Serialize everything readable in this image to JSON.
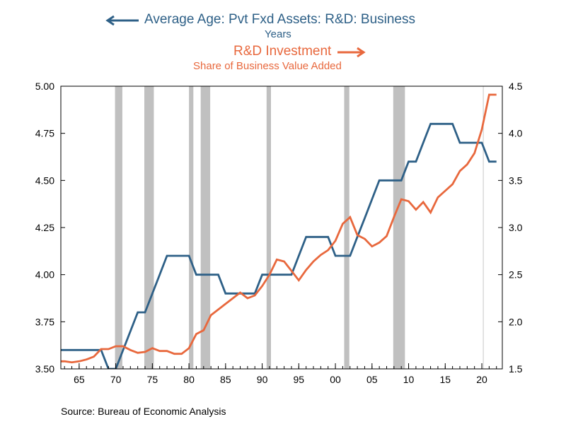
{
  "chart_data": {
    "type": "line",
    "legend": {
      "age_title": "Average Age: Pvt Fxd Assets: R&D: Business",
      "age_sub": "Years",
      "inv_title": "R&D Investment",
      "inv_sub": "Share of Business Value Added"
    },
    "source": "Source:  Bureau of Economic Analysis",
    "colors": {
      "age": "#2e6087",
      "investment": "#e8683d",
      "recession": "#c0c0c0",
      "ref_line": "#c8c8c8"
    },
    "x_range": [
      1962.5,
      2022.8
    ],
    "x_ticks": [
      {
        "v": 1965,
        "label": "65"
      },
      {
        "v": 1970,
        "label": "70"
      },
      {
        "v": 1975,
        "label": "75"
      },
      {
        "v": 1980,
        "label": "80"
      },
      {
        "v": 1985,
        "label": "85"
      },
      {
        "v": 1990,
        "label": "90"
      },
      {
        "v": 1995,
        "label": "95"
      },
      {
        "v": 2000,
        "label": "00"
      },
      {
        "v": 2005,
        "label": "05"
      },
      {
        "v": 2010,
        "label": "10"
      },
      {
        "v": 2015,
        "label": "15"
      },
      {
        "v": 2020,
        "label": "20"
      }
    ],
    "left_axis": {
      "ylim": [
        3.5,
        5.0
      ],
      "ticks": [
        "3.50",
        "3.75",
        "4.00",
        "4.25",
        "4.50",
        "4.75",
        "5.00"
      ]
    },
    "right_axis": {
      "ylim": [
        1.5,
        4.5
      ],
      "ticks": [
        "1.5",
        "2.0",
        "2.5",
        "3.0",
        "3.5",
        "4.0",
        "4.5"
      ]
    },
    "recessions": [
      [
        1969.9,
        1970.9
      ],
      [
        1973.9,
        1975.2
      ],
      [
        1980.0,
        1980.6
      ],
      [
        1981.6,
        1982.9
      ],
      [
        1990.6,
        1991.2
      ],
      [
        2001.2,
        2001.9
      ],
      [
        2007.9,
        2009.5
      ]
    ],
    "ref_line_x": 2020.2,
    "series": [
      {
        "name": "Average Age: Pvt Fxd Assets: R&D: Business",
        "axis": "left",
        "x": [
          1962,
          1963,
          1964,
          1965,
          1966,
          1967,
          1968,
          1969,
          1970,
          1971,
          1972,
          1973,
          1974,
          1975,
          1976,
          1977,
          1978,
          1979,
          1980,
          1981,
          1982,
          1983,
          1984,
          1985,
          1986,
          1987,
          1988,
          1989,
          1990,
          1991,
          1992,
          1993,
          1994,
          1995,
          1996,
          1997,
          1998,
          1999,
          2000,
          2001,
          2002,
          2003,
          2004,
          2005,
          2006,
          2007,
          2008,
          2009,
          2010,
          2011,
          2012,
          2013,
          2014,
          2015,
          2016,
          2017,
          2018,
          2019,
          2020,
          2021,
          2022
        ],
        "y": [
          3.6,
          3.6,
          3.6,
          3.6,
          3.6,
          3.6,
          3.6,
          3.5,
          3.5,
          3.6,
          3.7,
          3.8,
          3.8,
          3.9,
          4.0,
          4.1,
          4.1,
          4.1,
          4.1,
          4.0,
          4.0,
          4.0,
          4.0,
          3.9,
          3.9,
          3.9,
          3.9,
          3.9,
          4.0,
          4.0,
          4.0,
          4.0,
          4.0,
          4.1,
          4.2,
          4.2,
          4.2,
          4.2,
          4.1,
          4.1,
          4.1,
          4.2,
          4.3,
          4.4,
          4.5,
          4.5,
          4.5,
          4.5,
          4.6,
          4.6,
          4.7,
          4.8,
          4.8,
          4.8,
          4.8,
          4.7,
          4.7,
          4.7,
          4.7,
          4.6,
          4.6
        ]
      },
      {
        "name": "R&D Investment",
        "axis": "right",
        "x": [
          1962,
          1963,
          1964,
          1965,
          1966,
          1967,
          1968,
          1969,
          1970,
          1971,
          1972,
          1973,
          1974,
          1975,
          1976,
          1977,
          1978,
          1979,
          1980,
          1981,
          1982,
          1983,
          1984,
          1985,
          1986,
          1987,
          1988,
          1989,
          1990,
          1991,
          1992,
          1993,
          1994,
          1995,
          1996,
          1997,
          1998,
          1999,
          2000,
          2001,
          2002,
          2003,
          2004,
          2005,
          2006,
          2007,
          2008,
          2009,
          2010,
          2011,
          2012,
          2013,
          2014,
          2015,
          2016,
          2017,
          2018,
          2019,
          2020,
          2021,
          2022
        ],
        "y": [
          1.58,
          1.58,
          1.57,
          1.58,
          1.6,
          1.63,
          1.71,
          1.71,
          1.74,
          1.74,
          1.7,
          1.67,
          1.68,
          1.72,
          1.69,
          1.69,
          1.66,
          1.66,
          1.72,
          1.87,
          1.91,
          2.07,
          2.13,
          2.19,
          2.25,
          2.31,
          2.25,
          2.28,
          2.38,
          2.5,
          2.66,
          2.64,
          2.54,
          2.44,
          2.55,
          2.64,
          2.71,
          2.76,
          2.86,
          3.04,
          3.11,
          2.92,
          2.88,
          2.8,
          2.84,
          2.91,
          3.11,
          3.3,
          3.28,
          3.19,
          3.27,
          3.16,
          3.32,
          3.39,
          3.46,
          3.6,
          3.67,
          3.79,
          4.04,
          4.41,
          4.41
        ]
      }
    ]
  }
}
